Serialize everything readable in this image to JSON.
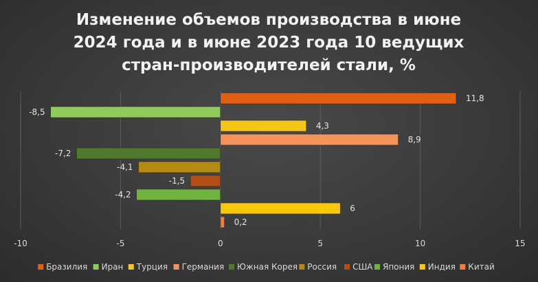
{
  "chart_data": {
    "type": "bar",
    "orientation": "horizontal",
    "title_lines": [
      "Изменение объемов производства в июне",
      "2024 года и в июне 2023 года 10 ведущих",
      "стран-производителей стали, %"
    ],
    "xlim": [
      -10,
      15
    ],
    "xticks": [
      "-10",
      "-5",
      "0",
      "5",
      "10",
      "15"
    ],
    "grid": "vertical",
    "legend_position": "bottom",
    "series": [
      {
        "name": "Бразилия",
        "value": 11.8,
        "label": "11,8",
        "color": "#e15f12"
      },
      {
        "name": "Иран",
        "value": -8.5,
        "label": "-8,5",
        "color": "#8fca5a"
      },
      {
        "name": "Турция",
        "value": 4.3,
        "label": "4,3",
        "color": "#f5c518"
      },
      {
        "name": "Германия",
        "value": 8.9,
        "label": "8,9",
        "color": "#f4935c"
      },
      {
        "name": "Южная Корея",
        "value": -7.2,
        "label": "-7,2",
        "color": "#4f7a2b"
      },
      {
        "name": "Россия",
        "value": -4.1,
        "label": "-4,1",
        "color": "#b38a12"
      },
      {
        "name": "США",
        "value": -1.5,
        "label": "-1,5",
        "color": "#b34e14"
      },
      {
        "name": "Япония",
        "value": -4.2,
        "label": "-4,2",
        "color": "#6fb23d"
      },
      {
        "name": "Индия",
        "value": 6,
        "label": "6",
        "color": "#f8c80a"
      },
      {
        "name": "Китай",
        "value": 0.2,
        "label": "0,2",
        "color": "#f07d3c"
      }
    ]
  }
}
